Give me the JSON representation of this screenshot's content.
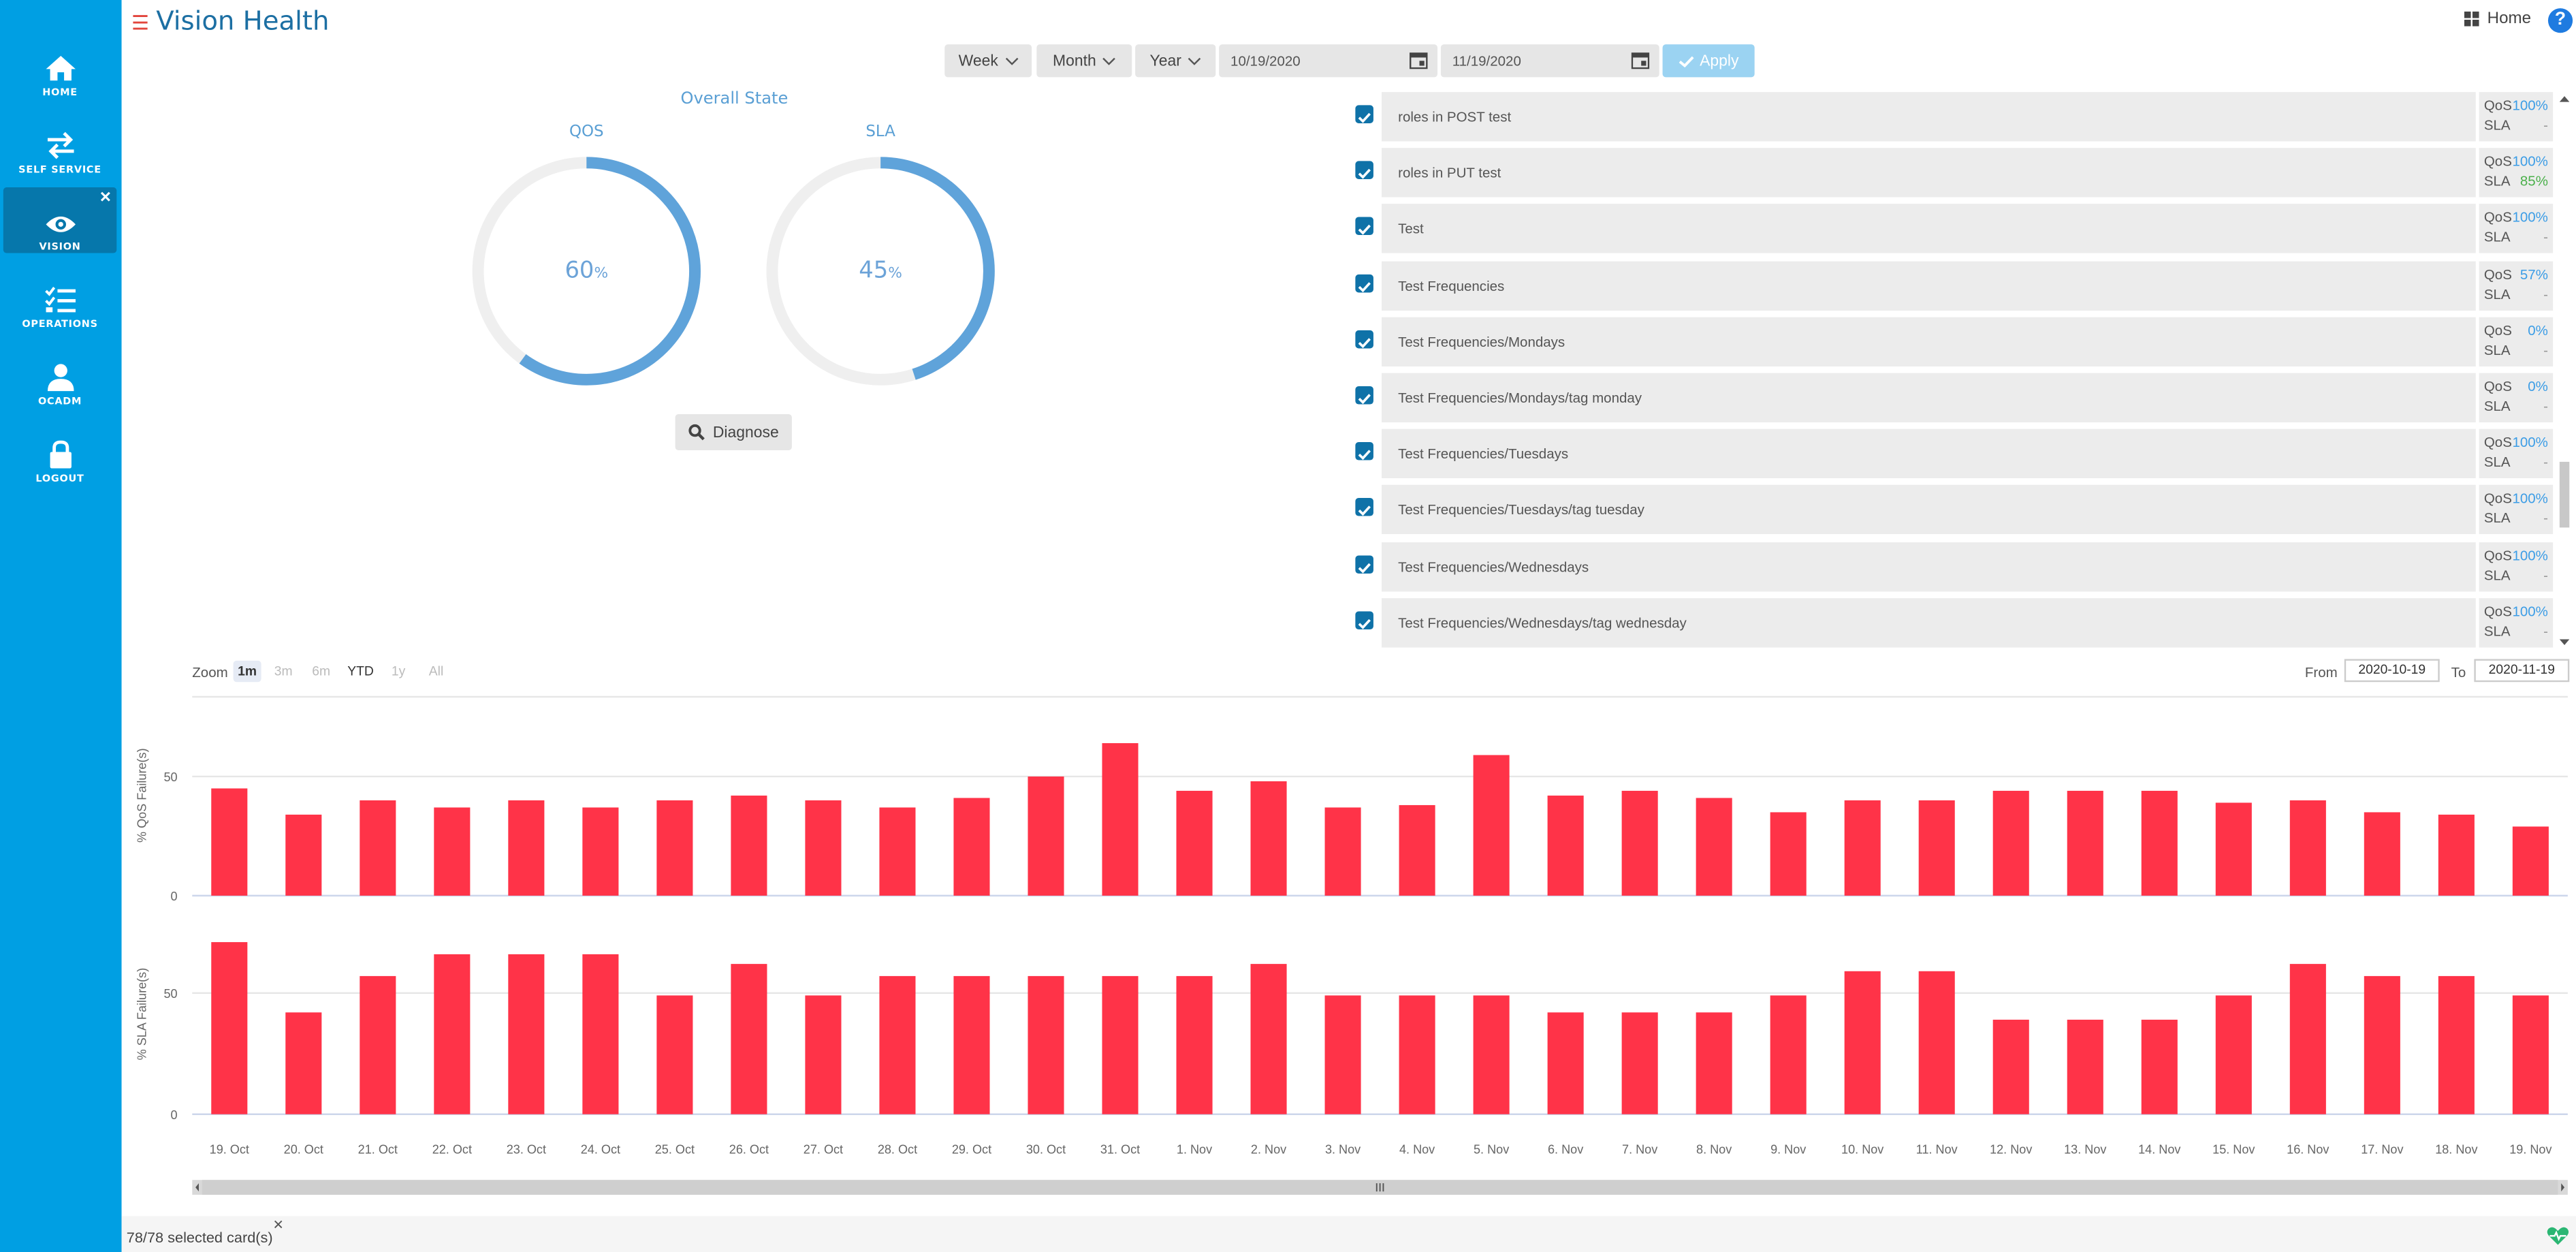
{
  "sidebar": {
    "items": [
      {
        "label": "HOME",
        "icon": "home-icon"
      },
      {
        "label": "SELF SERVICE",
        "icon": "swap-icon"
      },
      {
        "label": "VISION",
        "icon": "eye-icon",
        "active": true
      },
      {
        "label": "OPERATIONS",
        "icon": "checklist-icon"
      },
      {
        "label": "OCADM",
        "icon": "user-icon"
      },
      {
        "label": "LOGOUT",
        "icon": "lock-icon"
      }
    ]
  },
  "header": {
    "title": "Vision Health",
    "home_label": "Home",
    "help_label": "?"
  },
  "toolbar": {
    "week": "Week",
    "month": "Month",
    "year": "Year",
    "start_date": "10/19/2020",
    "end_date": "11/19/2020",
    "apply": "Apply"
  },
  "overall": {
    "title": "Overall State",
    "qos": {
      "label": "QOS",
      "value": "60",
      "unit": "%",
      "fraction": 0.6
    },
    "sla": {
      "label": "SLA",
      "value": "45",
      "unit": "%",
      "fraction": 0.45
    },
    "diagnose": "Diagnose"
  },
  "cards": [
    {
      "name": "roles in POST test",
      "qos": "100%",
      "sla": "-"
    },
    {
      "name": "roles in PUT test",
      "qos": "100%",
      "sla": "85%"
    },
    {
      "name": "Test",
      "qos": "100%",
      "sla": "-"
    },
    {
      "name": "Test Frequencies",
      "qos": "57%",
      "sla": "-"
    },
    {
      "name": "Test Frequencies/Mondays",
      "qos": "0%",
      "sla": "-"
    },
    {
      "name": "Test Frequencies/Mondays/tag monday",
      "qos": "0%",
      "sla": "-"
    },
    {
      "name": "Test Frequencies/Tuesdays",
      "qos": "100%",
      "sla": "-"
    },
    {
      "name": "Test Frequencies/Tuesdays/tag tuesday",
      "qos": "100%",
      "sla": "-"
    },
    {
      "name": "Test Frequencies/Wednesdays",
      "qos": "100%",
      "sla": "-"
    },
    {
      "name": "Test Frequencies/Wednesdays/tag wednesday",
      "qos": "100%",
      "sla": "-"
    }
  ],
  "metric_labels": {
    "qos": "QoS",
    "sla": "SLA"
  },
  "zoom": {
    "label": "Zoom",
    "options": [
      "1m",
      "3m",
      "6m",
      "YTD",
      "1y",
      "All"
    ],
    "selected": "1m"
  },
  "range": {
    "from_label": "From",
    "from": "2020-10-19",
    "to_label": "To",
    "to": "2020-11-19"
  },
  "colors": {
    "accent": "#009fe3",
    "bar": "#ff3348",
    "gauge": "#5fa3da"
  },
  "chart_data": [
    {
      "type": "bar",
      "ylabel": "% QoS Failure(s)",
      "yticks": [
        0,
        50
      ],
      "ylim": [
        0,
        80
      ],
      "categories": [
        "19. Oct",
        "20. Oct",
        "21. Oct",
        "22. Oct",
        "23. Oct",
        "24. Oct",
        "25. Oct",
        "26. Oct",
        "27. Oct",
        "28. Oct",
        "29. Oct",
        "30. Oct",
        "31. Oct",
        "1. Nov",
        "2. Nov",
        "3. Nov",
        "4. Nov",
        "5. Nov",
        "6. Nov",
        "7. Nov",
        "8. Nov",
        "9. Nov",
        "10. Nov",
        "11. Nov",
        "12. Nov",
        "13. Nov",
        "14. Nov",
        "15. Nov",
        "16. Nov",
        "17. Nov",
        "18. Nov",
        "19. Nov"
      ],
      "values": [
        45,
        34,
        40,
        37,
        40,
        37,
        40,
        42,
        40,
        37,
        41,
        50,
        64,
        44,
        48,
        37,
        38,
        59,
        42,
        44,
        41,
        35,
        40,
        40,
        44,
        44,
        44,
        39,
        40,
        35,
        34,
        29
      ]
    },
    {
      "type": "bar",
      "ylabel": "% SLA Failure(s)",
      "yticks": [
        0,
        50
      ],
      "ylim": [
        0,
        80
      ],
      "categories": [
        "19. Oct",
        "20. Oct",
        "21. Oct",
        "22. Oct",
        "23. Oct",
        "24. Oct",
        "25. Oct",
        "26. Oct",
        "27. Oct",
        "28. Oct",
        "29. Oct",
        "30. Oct",
        "31. Oct",
        "1. Nov",
        "2. Nov",
        "3. Nov",
        "4. Nov",
        "5. Nov",
        "6. Nov",
        "7. Nov",
        "8. Nov",
        "9. Nov",
        "10. Nov",
        "11. Nov",
        "12. Nov",
        "13. Nov",
        "14. Nov",
        "15. Nov",
        "16. Nov",
        "17. Nov",
        "18. Nov",
        "19. Nov"
      ],
      "values": [
        71,
        42,
        57,
        66,
        66,
        66,
        49,
        62,
        49,
        57,
        57,
        57,
        57,
        57,
        62,
        49,
        49,
        49,
        42,
        42,
        42,
        49,
        59,
        59,
        39,
        39,
        39,
        49,
        62,
        57,
        57,
        49
      ]
    }
  ],
  "footer": {
    "selected": "78/78 selected card(s)"
  }
}
